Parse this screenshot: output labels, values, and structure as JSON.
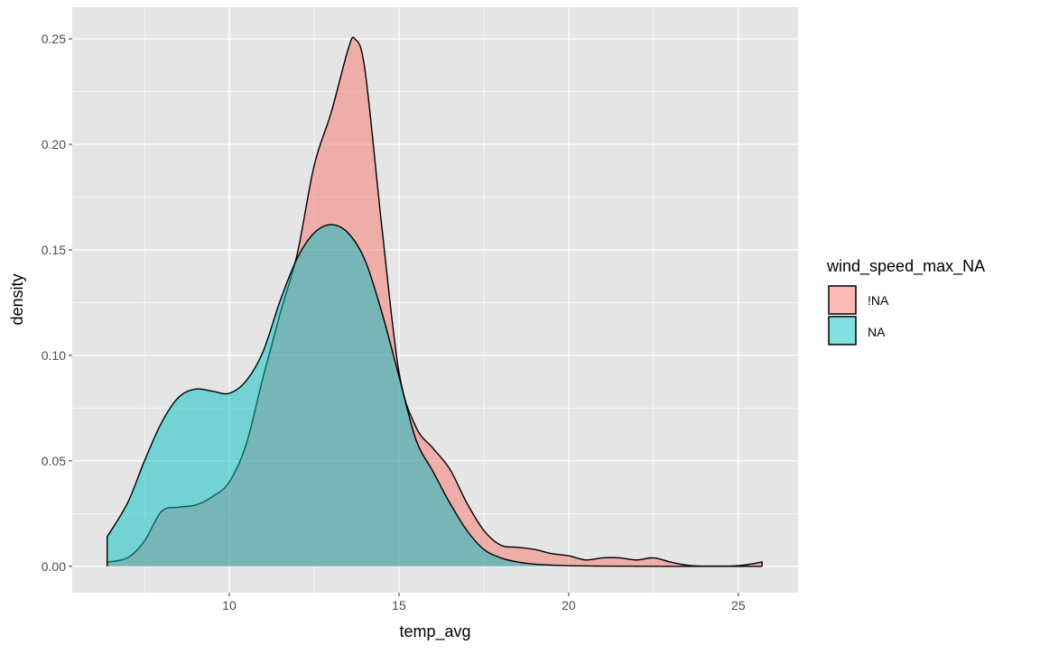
{
  "chart_data": {
    "type": "area",
    "subtype": "density",
    "title": "",
    "xlabel": "temp_avg",
    "ylabel": "density",
    "xlim": [
      5.37,
      26.76
    ],
    "ylim": [
      -0.0125,
      0.265
    ],
    "x_ticks": [
      10,
      15,
      20,
      25
    ],
    "x_tick_labels": [
      "10",
      "15",
      "20",
      "25"
    ],
    "y_ticks": [
      0,
      0.05,
      0.1,
      0.15,
      0.2,
      0.25
    ],
    "y_tick_labels": [
      "0.00",
      "0.05",
      "0.10",
      "0.15",
      "0.20",
      "0.25"
    ],
    "grid": true,
    "legend": {
      "title": "wind_speed_max_NA",
      "position": "right",
      "entries": [
        "!NA",
        "NA"
      ]
    },
    "colors": {
      "!NA": "#F8766D",
      "NA": "#00BFC4",
      "panel": "#E5E5E5",
      "grid": "#FFFFFF"
    },
    "series": [
      {
        "name": "!NA",
        "x": [
          6.4,
          7.0,
          7.5,
          8.0,
          8.5,
          9.0,
          9.5,
          10.0,
          10.5,
          11.0,
          11.5,
          12.0,
          12.5,
          13.0,
          13.5,
          13.7,
          14.0,
          14.5,
          15.0,
          15.5,
          16.0,
          16.5,
          17.0,
          17.5,
          18.0,
          18.5,
          19.0,
          19.5,
          20.0,
          20.5,
          21.0,
          21.5,
          22.0,
          22.5,
          23.0,
          23.5,
          24.0,
          25.0,
          25.7
        ],
        "y": [
          0.002,
          0.004,
          0.012,
          0.026,
          0.028,
          0.029,
          0.033,
          0.04,
          0.058,
          0.09,
          0.12,
          0.148,
          0.19,
          0.215,
          0.245,
          0.25,
          0.235,
          0.16,
          0.092,
          0.066,
          0.056,
          0.046,
          0.03,
          0.017,
          0.01,
          0.009,
          0.008,
          0.006,
          0.005,
          0.003,
          0.004,
          0.004,
          0.003,
          0.004,
          0.002,
          0.0005,
          0.0001,
          0.0003,
          0.002
        ]
      },
      {
        "name": "NA",
        "x": [
          6.4,
          7.0,
          7.5,
          8.0,
          8.5,
          9.0,
          9.5,
          10.0,
          10.5,
          11.0,
          11.5,
          12.0,
          12.5,
          13.0,
          13.5,
          14.0,
          14.5,
          15.0,
          15.5,
          16.0,
          16.5,
          17.0,
          17.5,
          18.0,
          18.5,
          19.0,
          20.0,
          21.0,
          23.0,
          25.7
        ],
        "y": [
          0.014,
          0.03,
          0.05,
          0.068,
          0.08,
          0.084,
          0.083,
          0.082,
          0.088,
          0.102,
          0.126,
          0.146,
          0.158,
          0.162,
          0.158,
          0.145,
          0.12,
          0.09,
          0.06,
          0.045,
          0.03,
          0.017,
          0.008,
          0.004,
          0.002,
          0.001,
          0.0003,
          0.0001,
          0,
          0
        ]
      }
    ]
  }
}
